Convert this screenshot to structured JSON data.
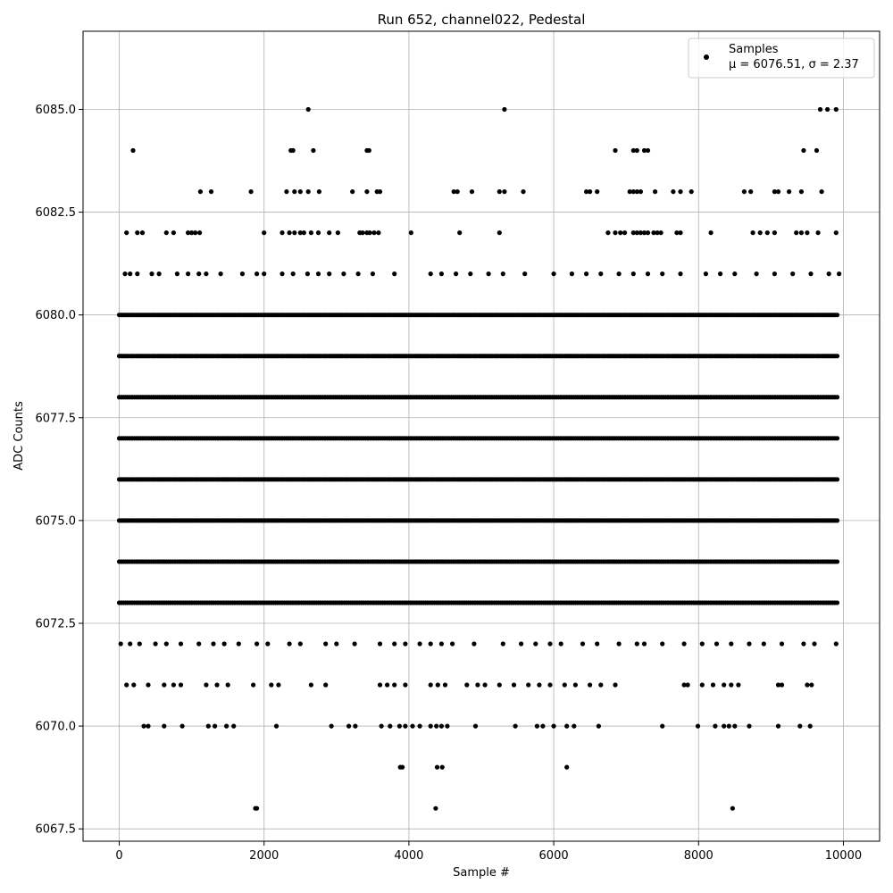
{
  "chart_data": {
    "type": "scatter",
    "title": "Run 652, channel022, Pedestal",
    "xlabel": "Sample #",
    "ylabel": "ADC Counts",
    "xlim": [
      -500,
      10500
    ],
    "ylim": [
      6067.2,
      6086.9
    ],
    "x_ticks": [
      0,
      2000,
      4000,
      6000,
      8000,
      10000
    ],
    "y_ticks": [
      6067.5,
      6070.0,
      6072.5,
      6075.0,
      6077.5,
      6080.0,
      6082.5,
      6085.0
    ],
    "x_tick_labels": [
      "0",
      "2000",
      "4000",
      "6000",
      "8000",
      "10000"
    ],
    "y_tick_labels": [
      "6067.5",
      "6070.0",
      "6072.5",
      "6075.0",
      "6077.5",
      "6080.0",
      "6082.5",
      "6085.0"
    ],
    "grid": true,
    "legend_position": "top-right",
    "legend": {
      "label": "Samples",
      "stats": "μ = 6076.51, σ = 2.37"
    },
    "marker_color": "#000000",
    "series": [
      {
        "name": "Samples",
        "dense_rows": [
          {
            "y": 6080,
            "x_range": [
              0,
              9940
            ]
          },
          {
            "y": 6079,
            "x_range": [
              0,
              9940
            ]
          },
          {
            "y": 6078,
            "x_range": [
              0,
              9940
            ]
          },
          {
            "y": 6077,
            "x_range": [
              0,
              9940
            ]
          },
          {
            "y": 6076,
            "x_range": [
              0,
              9940
            ]
          },
          {
            "y": 6075,
            "x_range": [
              0,
              9940
            ]
          },
          {
            "y": 6074,
            "x_range": [
              0,
              9940
            ]
          },
          {
            "y": 6073,
            "x_range": [
              0,
              9940
            ]
          }
        ],
        "points": [
          [
            190,
            6084
          ],
          [
            2370,
            6084
          ],
          [
            2400,
            6084
          ],
          [
            2680,
            6084
          ],
          [
            3420,
            6084
          ],
          [
            3450,
            6084
          ],
          [
            6850,
            6084
          ],
          [
            7100,
            6084
          ],
          [
            7150,
            6084
          ],
          [
            7250,
            6084
          ],
          [
            7300,
            6084
          ],
          [
            9450,
            6084
          ],
          [
            9630,
            6084
          ],
          [
            2610,
            6085
          ],
          [
            5320,
            6085
          ],
          [
            9680,
            6085
          ],
          [
            9780,
            6085
          ],
          [
            9900,
            6085
          ],
          [
            1120,
            6083
          ],
          [
            1270,
            6083
          ],
          [
            1820,
            6083
          ],
          [
            2310,
            6083
          ],
          [
            2420,
            6083
          ],
          [
            2500,
            6083
          ],
          [
            2610,
            6083
          ],
          [
            2760,
            6083
          ],
          [
            3220,
            6083
          ],
          [
            3420,
            6083
          ],
          [
            3560,
            6083
          ],
          [
            3600,
            6083
          ],
          [
            4620,
            6083
          ],
          [
            4670,
            6083
          ],
          [
            4870,
            6083
          ],
          [
            5250,
            6083
          ],
          [
            5320,
            6083
          ],
          [
            5580,
            6083
          ],
          [
            6450,
            6083
          ],
          [
            6500,
            6083
          ],
          [
            6600,
            6083
          ],
          [
            7050,
            6083
          ],
          [
            7100,
            6083
          ],
          [
            7150,
            6083
          ],
          [
            7200,
            6083
          ],
          [
            7400,
            6083
          ],
          [
            7650,
            6083
          ],
          [
            7750,
            6083
          ],
          [
            7900,
            6083
          ],
          [
            8630,
            6083
          ],
          [
            8720,
            6083
          ],
          [
            9050,
            6083
          ],
          [
            9100,
            6083
          ],
          [
            9250,
            6083
          ],
          [
            9420,
            6083
          ],
          [
            9700,
            6083
          ],
          [
            100,
            6082
          ],
          [
            250,
            6082
          ],
          [
            320,
            6082
          ],
          [
            650,
            6082
          ],
          [
            750,
            6082
          ],
          [
            950,
            6082
          ],
          [
            1000,
            6082
          ],
          [
            1050,
            6082
          ],
          [
            1110,
            6082
          ],
          [
            2000,
            6082
          ],
          [
            2250,
            6082
          ],
          [
            2350,
            6082
          ],
          [
            2420,
            6082
          ],
          [
            2500,
            6082
          ],
          [
            2550,
            6082
          ],
          [
            2650,
            6082
          ],
          [
            2750,
            6082
          ],
          [
            2900,
            6082
          ],
          [
            3020,
            6082
          ],
          [
            3320,
            6082
          ],
          [
            3360,
            6082
          ],
          [
            3420,
            6082
          ],
          [
            3460,
            6082
          ],
          [
            3520,
            6082
          ],
          [
            3580,
            6082
          ],
          [
            4030,
            6082
          ],
          [
            4700,
            6082
          ],
          [
            5250,
            6082
          ],
          [
            6750,
            6082
          ],
          [
            6850,
            6082
          ],
          [
            6920,
            6082
          ],
          [
            6980,
            6082
          ],
          [
            7100,
            6082
          ],
          [
            7150,
            6082
          ],
          [
            7200,
            6082
          ],
          [
            7250,
            6082
          ],
          [
            7300,
            6082
          ],
          [
            7380,
            6082
          ],
          [
            7430,
            6082
          ],
          [
            7480,
            6082
          ],
          [
            7700,
            6082
          ],
          [
            7750,
            6082
          ],
          [
            8170,
            6082
          ],
          [
            8750,
            6082
          ],
          [
            8850,
            6082
          ],
          [
            8950,
            6082
          ],
          [
            9050,
            6082
          ],
          [
            9350,
            6082
          ],
          [
            9420,
            6082
          ],
          [
            9500,
            6082
          ],
          [
            9650,
            6082
          ],
          [
            9900,
            6082
          ],
          [
            80,
            6081
          ],
          [
            150,
            6081
          ],
          [
            250,
            6081
          ],
          [
            450,
            6081
          ],
          [
            550,
            6081
          ],
          [
            800,
            6081
          ],
          [
            950,
            6081
          ],
          [
            1100,
            6081
          ],
          [
            1200,
            6081
          ],
          [
            1400,
            6081
          ],
          [
            1700,
            6081
          ],
          [
            1900,
            6081
          ],
          [
            2000,
            6081
          ],
          [
            2250,
            6081
          ],
          [
            2400,
            6081
          ],
          [
            2600,
            6081
          ],
          [
            2750,
            6081
          ],
          [
            2900,
            6081
          ],
          [
            3100,
            6081
          ],
          [
            3300,
            6081
          ],
          [
            3500,
            6081
          ],
          [
            3800,
            6081
          ],
          [
            4300,
            6081
          ],
          [
            4450,
            6081
          ],
          [
            4650,
            6081
          ],
          [
            4850,
            6081
          ],
          [
            5100,
            6081
          ],
          [
            5300,
            6081
          ],
          [
            5600,
            6081
          ],
          [
            6000,
            6081
          ],
          [
            6250,
            6081
          ],
          [
            6450,
            6081
          ],
          [
            6650,
            6081
          ],
          [
            6900,
            6081
          ],
          [
            7100,
            6081
          ],
          [
            7300,
            6081
          ],
          [
            7500,
            6081
          ],
          [
            7750,
            6081
          ],
          [
            8100,
            6081
          ],
          [
            8300,
            6081
          ],
          [
            8500,
            6081
          ],
          [
            8800,
            6081
          ],
          [
            9050,
            6081
          ],
          [
            9300,
            6081
          ],
          [
            9550,
            6081
          ],
          [
            9800,
            6081
          ],
          [
            9940,
            6081
          ],
          [
            20,
            6072
          ],
          [
            150,
            6072
          ],
          [
            280,
            6072
          ],
          [
            500,
            6072
          ],
          [
            650,
            6072
          ],
          [
            850,
            6072
          ],
          [
            1100,
            6072
          ],
          [
            1300,
            6072
          ],
          [
            1450,
            6072
          ],
          [
            1650,
            6072
          ],
          [
            1900,
            6072
          ],
          [
            2050,
            6072
          ],
          [
            2350,
            6072
          ],
          [
            2500,
            6072
          ],
          [
            2850,
            6072
          ],
          [
            3000,
            6072
          ],
          [
            3250,
            6072
          ],
          [
            3600,
            6072
          ],
          [
            3800,
            6072
          ],
          [
            3950,
            6072
          ],
          [
            4150,
            6072
          ],
          [
            4300,
            6072
          ],
          [
            4450,
            6072
          ],
          [
            4600,
            6072
          ],
          [
            4900,
            6072
          ],
          [
            5300,
            6072
          ],
          [
            5550,
            6072
          ],
          [
            5750,
            6072
          ],
          [
            5950,
            6072
          ],
          [
            6100,
            6072
          ],
          [
            6400,
            6072
          ],
          [
            6600,
            6072
          ],
          [
            6900,
            6072
          ],
          [
            7150,
            6072
          ],
          [
            7250,
            6072
          ],
          [
            7500,
            6072
          ],
          [
            7800,
            6072
          ],
          [
            8050,
            6072
          ],
          [
            8250,
            6072
          ],
          [
            8450,
            6072
          ],
          [
            8700,
            6072
          ],
          [
            8900,
            6072
          ],
          [
            9150,
            6072
          ],
          [
            9450,
            6072
          ],
          [
            9600,
            6072
          ],
          [
            9900,
            6072
          ],
          [
            100,
            6071
          ],
          [
            200,
            6071
          ],
          [
            400,
            6071
          ],
          [
            620,
            6071
          ],
          [
            750,
            6071
          ],
          [
            850,
            6071
          ],
          [
            1200,
            6071
          ],
          [
            1350,
            6071
          ],
          [
            1500,
            6071
          ],
          [
            1850,
            6071
          ],
          [
            2100,
            6071
          ],
          [
            2200,
            6071
          ],
          [
            2650,
            6071
          ],
          [
            2850,
            6071
          ],
          [
            3600,
            6071
          ],
          [
            3700,
            6071
          ],
          [
            3800,
            6071
          ],
          [
            3950,
            6071
          ],
          [
            4300,
            6071
          ],
          [
            4400,
            6071
          ],
          [
            4500,
            6071
          ],
          [
            4800,
            6071
          ],
          [
            4950,
            6071
          ],
          [
            5050,
            6071
          ],
          [
            5250,
            6071
          ],
          [
            5450,
            6071
          ],
          [
            5650,
            6071
          ],
          [
            5800,
            6071
          ],
          [
            5950,
            6071
          ],
          [
            6150,
            6071
          ],
          [
            6300,
            6071
          ],
          [
            6500,
            6071
          ],
          [
            6650,
            6071
          ],
          [
            6850,
            6071
          ],
          [
            7800,
            6071
          ],
          [
            7850,
            6071
          ],
          [
            8050,
            6071
          ],
          [
            8200,
            6071
          ],
          [
            8350,
            6071
          ],
          [
            8450,
            6071
          ],
          [
            8550,
            6071
          ],
          [
            9100,
            6071
          ],
          [
            9150,
            6071
          ],
          [
            9500,
            6071
          ],
          [
            9560,
            6071
          ],
          [
            340,
            6070
          ],
          [
            400,
            6070
          ],
          [
            620,
            6070
          ],
          [
            870,
            6070
          ],
          [
            1230,
            6070
          ],
          [
            1320,
            6070
          ],
          [
            1480,
            6070
          ],
          [
            1580,
            6070
          ],
          [
            2170,
            6070
          ],
          [
            2930,
            6070
          ],
          [
            3170,
            6070
          ],
          [
            3260,
            6070
          ],
          [
            3620,
            6070
          ],
          [
            3740,
            6070
          ],
          [
            3870,
            6070
          ],
          [
            3950,
            6070
          ],
          [
            4050,
            6070
          ],
          [
            4150,
            6070
          ],
          [
            4300,
            6070
          ],
          [
            4380,
            6070
          ],
          [
            4450,
            6070
          ],
          [
            4530,
            6070
          ],
          [
            4920,
            6070
          ],
          [
            5470,
            6070
          ],
          [
            5770,
            6070
          ],
          [
            5850,
            6070
          ],
          [
            6000,
            6070
          ],
          [
            6180,
            6070
          ],
          [
            6280,
            6070
          ],
          [
            6620,
            6070
          ],
          [
            7500,
            6070
          ],
          [
            7990,
            6070
          ],
          [
            8230,
            6070
          ],
          [
            8350,
            6070
          ],
          [
            8420,
            6070
          ],
          [
            8500,
            6070
          ],
          [
            8700,
            6070
          ],
          [
            9100,
            6070
          ],
          [
            9400,
            6070
          ],
          [
            9540,
            6070
          ],
          [
            3880,
            6069
          ],
          [
            3910,
            6069
          ],
          [
            4390,
            6069
          ],
          [
            4460,
            6069
          ],
          [
            6180,
            6069
          ],
          [
            1880,
            6068
          ],
          [
            1900,
            6068
          ],
          [
            4370,
            6068
          ],
          [
            8470,
            6068
          ]
        ]
      }
    ]
  }
}
